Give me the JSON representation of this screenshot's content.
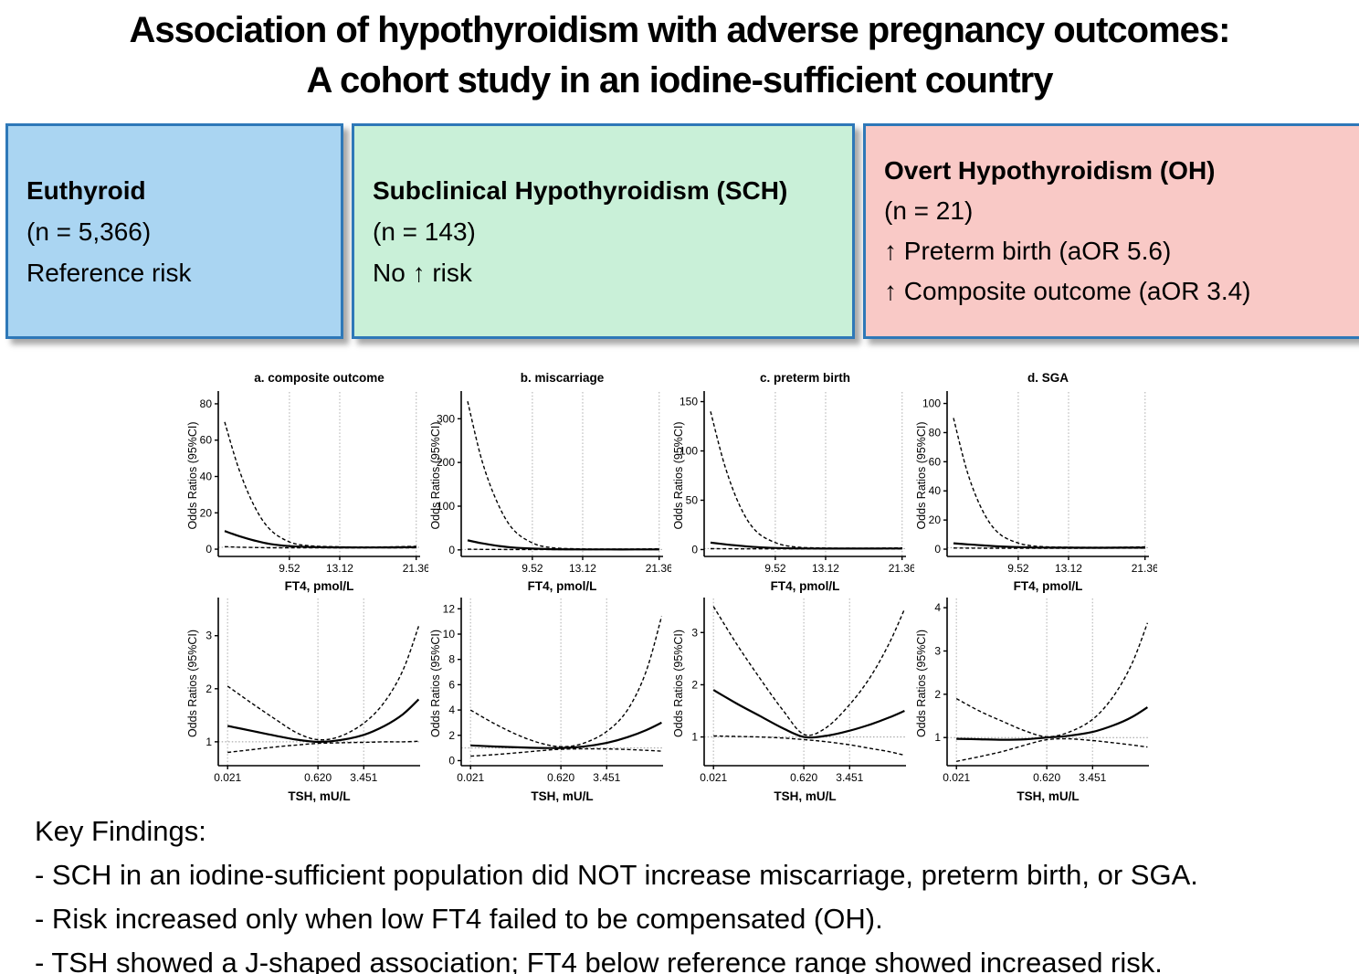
{
  "title": {
    "line1": "Association of hypothyroidism with adverse pregnancy outcomes:",
    "line2": "A cohort study in an iodine-sufficient country"
  },
  "boxes": [
    {
      "heading": "Euthyroid",
      "lines": [
        "(n = 5,366)",
        "Reference risk"
      ],
      "bg": "#aad5f2",
      "border": "#2e78b8"
    },
    {
      "heading": "Subclinical Hypothyroidism (SCH)",
      "lines": [
        "(n = 143)",
        "No ↑ risk"
      ],
      "bg": "#c9f0d8",
      "border": "#2e78b8"
    },
    {
      "heading": "Overt Hypothyroidism (OH)",
      "lines": [
        "(n = 21)",
        "↑ Preterm birth (aOR 5.6)",
        "↑ Composite outcome (aOR 3.4)"
      ],
      "bg": "#f9c9c6",
      "border": "#2e78b8"
    }
  ],
  "key_findings": {
    "heading": "Key Findings:",
    "bullets": [
      "- SCH in an iodine-sufficient population did NOT increase miscarriage, preterm birth, or SGA.",
      "- Risk increased only when low FT4 failed to be compensated (OH).",
      "- TSH showed a J-shaped association; FT4 below reference range showed increased risk."
    ]
  },
  "chart_style": {
    "line_color": "#000000",
    "grid_color": "#c3c3c3",
    "ref_color": "#9a9a9a"
  },
  "chart_data": [
    {
      "id": "ft4-composite-outcome",
      "row": "top",
      "type": "line",
      "title": "a. composite outcome",
      "xlabel": "FT4, pmol/L",
      "ylabel": "Odds Ratios (95%CI)",
      "xscale": "log",
      "xlim": [
        6.05,
        21.9
      ],
      "ylim": [
        -4,
        85
      ],
      "xticks": [
        {
          "v": 9.52,
          "label": "9.52"
        },
        {
          "v": 13.12,
          "label": "13.12"
        },
        {
          "v": 21.36,
          "label": "21.36"
        }
      ],
      "yticks": [
        0,
        20,
        40,
        60,
        80
      ],
      "refline_y": 1,
      "series": [
        {
          "name": "odds-ratio",
          "style": "solid",
          "x": [
            6.3,
            6.9,
            7.6,
            8.4,
            9.52,
            10.8,
            13.12,
            15.5,
            18.3,
            21.4
          ],
          "y": [
            10,
            7.2,
            4.8,
            2.9,
            1.7,
            1.2,
            1.0,
            0.95,
            1.0,
            1.1
          ]
        },
        {
          "name": "upper-95ci",
          "style": "dashed",
          "x": [
            6.3,
            6.9,
            7.6,
            8.4,
            9.52,
            10.8,
            13.12,
            15.5,
            18.3,
            21.4
          ],
          "y": [
            70,
            44,
            24,
            11,
            4.0,
            1.9,
            1.3,
            1.2,
            1.3,
            1.6
          ]
        },
        {
          "name": "lower-95ci",
          "style": "dashed",
          "x": [
            6.3,
            6.9,
            7.6,
            8.4,
            9.52,
            10.8,
            13.12,
            15.5,
            18.3,
            21.4
          ],
          "y": [
            1.4,
            1.1,
            0.95,
            0.8,
            0.75,
            0.75,
            0.78,
            0.8,
            0.8,
            0.8
          ]
        }
      ]
    },
    {
      "id": "ft4-miscarriage",
      "row": "top",
      "type": "line",
      "title": "b. miscarriage",
      "xlabel": "FT4, pmol/L",
      "ylabel": "Odds Ratios (95%CI)",
      "xscale": "log",
      "xlim": [
        6.05,
        21.9
      ],
      "ylim": [
        -15,
        355
      ],
      "xticks": [
        {
          "v": 9.52,
          "label": "9.52"
        },
        {
          "v": 13.12,
          "label": "13.12"
        },
        {
          "v": 21.36,
          "label": "21.36"
        }
      ],
      "yticks": [
        0,
        100,
        200,
        300
      ],
      "refline_y": 1,
      "series": [
        {
          "name": "odds-ratio",
          "style": "solid",
          "x": [
            6.3,
            6.9,
            7.6,
            8.4,
            9.52,
            10.8,
            13.12,
            15.5,
            18.3,
            21.4
          ],
          "y": [
            22,
            15,
            9.5,
            5.5,
            3.0,
            1.6,
            1.1,
            1.0,
            1.0,
            1.1
          ]
        },
        {
          "name": "upper-95ci",
          "style": "dashed",
          "x": [
            6.3,
            6.9,
            7.6,
            8.4,
            9.52,
            10.8,
            13.12,
            15.5,
            18.3,
            21.4
          ],
          "y": [
            340,
            205,
            110,
            48,
            16,
            5,
            2.2,
            1.8,
            2.0,
            2.5
          ]
        },
        {
          "name": "lower-95ci",
          "style": "dashed",
          "x": [
            6.3,
            6.9,
            7.6,
            8.4,
            9.52,
            10.8,
            13.12,
            15.5,
            18.3,
            21.4
          ],
          "y": [
            1.5,
            1.2,
            1.0,
            0.9,
            0.85,
            0.85,
            0.85,
            0.85,
            0.85,
            0.9
          ]
        }
      ]
    },
    {
      "id": "ft4-preterm-birth",
      "row": "top",
      "type": "line",
      "title": "c. preterm birth",
      "xlabel": "FT4, pmol/L",
      "ylabel": "Odds Ratios (95%CI)",
      "xscale": "log",
      "xlim": [
        6.05,
        21.9
      ],
      "ylim": [
        -7,
        157
      ],
      "xticks": [
        {
          "v": 9.52,
          "label": "9.52"
        },
        {
          "v": 13.12,
          "label": "13.12"
        },
        {
          "v": 21.36,
          "label": "21.36"
        }
      ],
      "yticks": [
        0,
        50,
        100,
        150
      ],
      "refline_y": 1,
      "series": [
        {
          "name": "odds-ratio",
          "style": "solid",
          "x": [
            6.3,
            6.9,
            7.6,
            8.4,
            9.52,
            10.8,
            13.12,
            15.5,
            18.3,
            21.4
          ],
          "y": [
            7,
            5.3,
            3.8,
            2.5,
            1.6,
            1.2,
            1.0,
            0.95,
            1.0,
            1.1
          ]
        },
        {
          "name": "upper-95ci",
          "style": "dashed",
          "x": [
            6.3,
            6.9,
            7.6,
            8.4,
            9.52,
            10.8,
            13.12,
            15.5,
            18.3,
            21.4
          ],
          "y": [
            140,
            85,
            44,
            19,
            7,
            2.6,
            1.5,
            1.3,
            1.4,
            1.7
          ]
        },
        {
          "name": "lower-95ci",
          "style": "dashed",
          "x": [
            6.3,
            6.9,
            7.6,
            8.4,
            9.52,
            10.8,
            13.12,
            15.5,
            18.3,
            21.4
          ],
          "y": [
            0.9,
            0.8,
            0.72,
            0.68,
            0.66,
            0.68,
            0.7,
            0.72,
            0.72,
            0.72
          ]
        }
      ]
    },
    {
      "id": "ft4-sga",
      "row": "top",
      "type": "line",
      "title": "d. SGA",
      "xlabel": "FT4, pmol/L",
      "ylabel": "Odds Ratios (95%CI)",
      "xscale": "log",
      "xlim": [
        6.05,
        21.9
      ],
      "ylim": [
        -5,
        106
      ],
      "xticks": [
        {
          "v": 9.52,
          "label": "9.52"
        },
        {
          "v": 13.12,
          "label": "13.12"
        },
        {
          "v": 21.36,
          "label": "21.36"
        }
      ],
      "yticks": [
        0,
        20,
        40,
        60,
        80,
        100
      ],
      "refline_y": 1,
      "series": [
        {
          "name": "odds-ratio",
          "style": "solid",
          "x": [
            6.3,
            6.9,
            7.6,
            8.4,
            9.52,
            10.8,
            13.12,
            15.5,
            18.3,
            21.4
          ],
          "y": [
            4.0,
            3.3,
            2.6,
            1.9,
            1.4,
            1.1,
            1.0,
            0.95,
            1.0,
            1.05
          ]
        },
        {
          "name": "upper-95ci",
          "style": "dashed",
          "x": [
            6.3,
            6.9,
            7.6,
            8.4,
            9.52,
            10.8,
            13.12,
            15.5,
            18.3,
            21.4
          ],
          "y": [
            90,
            52,
            26,
            11,
            4.2,
            1.9,
            1.3,
            1.2,
            1.3,
            1.6
          ]
        },
        {
          "name": "lower-95ci",
          "style": "dashed",
          "x": [
            6.3,
            6.9,
            7.6,
            8.4,
            9.52,
            10.8,
            13.12,
            15.5,
            18.3,
            21.4
          ],
          "y": [
            0.8,
            0.72,
            0.66,
            0.62,
            0.6,
            0.62,
            0.65,
            0.68,
            0.7,
            0.7
          ]
        }
      ]
    },
    {
      "id": "tsh-composite-outcome",
      "row": "bottom",
      "type": "line",
      "title": "",
      "xlabel": "TSH, mU/L",
      "ylabel": "Odds Ratios (95%CI)",
      "xscale": "log",
      "xlim": [
        0.0148,
        28.5
      ],
      "ylim": [
        0.55,
        3.65
      ],
      "xticks": [
        {
          "v": 0.021,
          "label": "0.021"
        },
        {
          "v": 0.62,
          "label": "0.620"
        },
        {
          "v": 3.451,
          "label": "3.451"
        }
      ],
      "yticks": [
        1,
        2,
        3
      ],
      "refline_y": 1,
      "series": [
        {
          "name": "odds-ratio",
          "style": "solid",
          "x": [
            0.021,
            0.05,
            0.12,
            0.28,
            0.62,
            1.4,
            3.451,
            7.5,
            15,
            27
          ],
          "y": [
            1.3,
            1.21,
            1.12,
            1.04,
            1.0,
            1.03,
            1.13,
            1.3,
            1.52,
            1.8
          ]
        },
        {
          "name": "upper-95ci",
          "style": "dashed",
          "x": [
            0.021,
            0.05,
            0.12,
            0.28,
            0.62,
            1.4,
            3.451,
            7.5,
            15,
            27
          ],
          "y": [
            2.05,
            1.74,
            1.44,
            1.17,
            1.04,
            1.1,
            1.35,
            1.75,
            2.35,
            3.18
          ]
        },
        {
          "name": "lower-95ci",
          "style": "dashed",
          "x": [
            0.021,
            0.05,
            0.12,
            0.28,
            0.62,
            1.4,
            3.451,
            7.5,
            15,
            27
          ],
          "y": [
            0.8,
            0.85,
            0.9,
            0.94,
            0.97,
            0.98,
            0.99,
            1.0,
            1.0,
            1.01
          ]
        }
      ]
    },
    {
      "id": "tsh-miscarriage",
      "row": "bottom",
      "type": "line",
      "title": "",
      "xlabel": "TSH, mU/L",
      "ylabel": "Odds Ratios (95%CI)",
      "xscale": "log",
      "xlim": [
        0.0148,
        28.5
      ],
      "ylim": [
        -0.4,
        12.6
      ],
      "xticks": [
        {
          "v": 0.021,
          "label": "0.021"
        },
        {
          "v": 0.62,
          "label": "0.620"
        },
        {
          "v": 3.451,
          "label": "3.451"
        }
      ],
      "yticks": [
        0,
        2,
        4,
        6,
        8,
        10,
        12
      ],
      "refline_y": 1,
      "series": [
        {
          "name": "odds-ratio",
          "style": "solid",
          "x": [
            0.021,
            0.05,
            0.12,
            0.28,
            0.62,
            1.4,
            3.451,
            7.5,
            15,
            27
          ],
          "y": [
            1.2,
            1.12,
            1.05,
            1.0,
            1.0,
            1.1,
            1.4,
            1.85,
            2.4,
            3.0
          ]
        },
        {
          "name": "upper-95ci",
          "style": "dashed",
          "x": [
            0.021,
            0.05,
            0.12,
            0.28,
            0.62,
            1.4,
            3.451,
            7.5,
            15,
            27
          ],
          "y": [
            4.0,
            2.95,
            2.05,
            1.4,
            1.1,
            1.35,
            2.3,
            4.0,
            7.0,
            11.4
          ]
        },
        {
          "name": "lower-95ci",
          "style": "dashed",
          "x": [
            0.021,
            0.05,
            0.12,
            0.28,
            0.62,
            1.4,
            3.451,
            7.5,
            15,
            27
          ],
          "y": [
            0.35,
            0.47,
            0.62,
            0.78,
            0.9,
            0.93,
            0.92,
            0.88,
            0.81,
            0.75
          ]
        }
      ]
    },
    {
      "id": "tsh-preterm-birth",
      "row": "bottom",
      "type": "line",
      "title": "",
      "xlabel": "TSH, mU/L",
      "ylabel": "Odds Ratios (95%CI)",
      "xscale": "log",
      "xlim": [
        0.0148,
        28.5
      ],
      "ylim": [
        0.45,
        3.6
      ],
      "xticks": [
        {
          "v": 0.021,
          "label": "0.021"
        },
        {
          "v": 0.62,
          "label": "0.620"
        },
        {
          "v": 3.451,
          "label": "3.451"
        }
      ],
      "yticks": [
        1,
        2,
        3
      ],
      "refline_y": 1,
      "series": [
        {
          "name": "odds-ratio",
          "style": "solid",
          "x": [
            0.021,
            0.05,
            0.12,
            0.28,
            0.62,
            1.4,
            3.451,
            7.5,
            15,
            27
          ],
          "y": [
            1.9,
            1.64,
            1.4,
            1.17,
            1.0,
            1.02,
            1.12,
            1.24,
            1.37,
            1.5
          ]
        },
        {
          "name": "upper-95ci",
          "style": "dashed",
          "x": [
            0.021,
            0.05,
            0.12,
            0.28,
            0.62,
            1.4,
            3.451,
            7.5,
            15,
            27
          ],
          "y": [
            3.5,
            2.78,
            2.12,
            1.52,
            1.05,
            1.17,
            1.62,
            2.15,
            2.78,
            3.45
          ]
        },
        {
          "name": "lower-95ci",
          "style": "dashed",
          "x": [
            0.021,
            0.05,
            0.12,
            0.28,
            0.62,
            1.4,
            3.451,
            7.5,
            15,
            27
          ],
          "y": [
            1.02,
            1.01,
            1.0,
            0.98,
            0.95,
            0.91,
            0.85,
            0.78,
            0.72,
            0.65
          ]
        }
      ]
    },
    {
      "id": "tsh-sga",
      "row": "bottom",
      "type": "line",
      "title": "",
      "xlabel": "TSH, mU/L",
      "ylabel": "Odds Ratios (95%CI)",
      "xscale": "log",
      "xlim": [
        0.0148,
        28.5
      ],
      "ylim": [
        0.35,
        4.15
      ],
      "xticks": [
        {
          "v": 0.021,
          "label": "0.021"
        },
        {
          "v": 0.62,
          "label": "0.620"
        },
        {
          "v": 3.451,
          "label": "3.451"
        }
      ],
      "yticks": [
        1,
        2,
        3,
        4
      ],
      "refline_y": 1,
      "series": [
        {
          "name": "odds-ratio",
          "style": "solid",
          "x": [
            0.021,
            0.05,
            0.12,
            0.28,
            0.62,
            1.4,
            3.451,
            7.5,
            15,
            27
          ],
          "y": [
            0.97,
            0.96,
            0.95,
            0.96,
            1.0,
            1.04,
            1.13,
            1.28,
            1.47,
            1.7
          ]
        },
        {
          "name": "upper-95ci",
          "style": "dashed",
          "x": [
            0.021,
            0.05,
            0.12,
            0.28,
            0.62,
            1.4,
            3.451,
            7.5,
            15,
            27
          ],
          "y": [
            1.9,
            1.61,
            1.37,
            1.15,
            1.02,
            1.12,
            1.42,
            1.95,
            2.7,
            3.65
          ]
        },
        {
          "name": "lower-95ci",
          "style": "dashed",
          "x": [
            0.021,
            0.05,
            0.12,
            0.28,
            0.62,
            1.4,
            3.451,
            7.5,
            15,
            27
          ],
          "y": [
            0.45,
            0.56,
            0.68,
            0.83,
            0.95,
            0.97,
            0.93,
            0.88,
            0.83,
            0.78
          ]
        }
      ]
    }
  ]
}
